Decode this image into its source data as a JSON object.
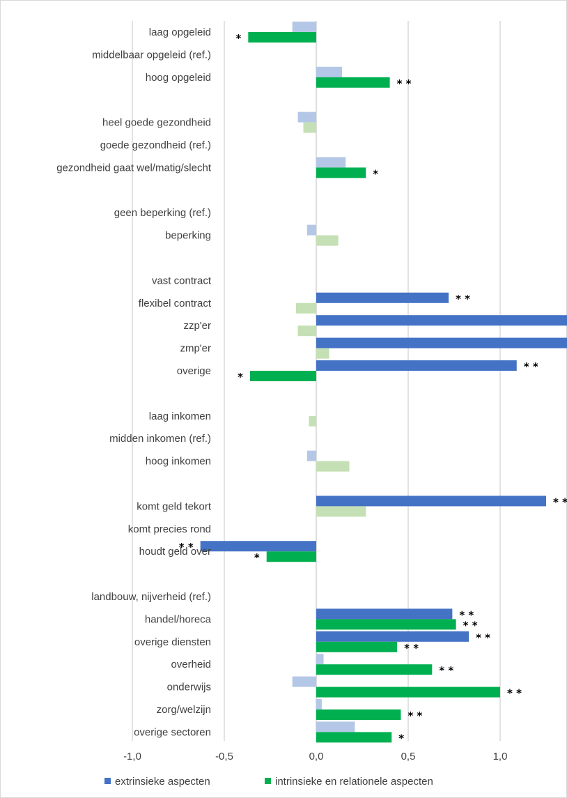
{
  "chart_data": {
    "type": "bar",
    "orientation": "horizontal",
    "xlim": [
      -1.0,
      2.5
    ],
    "xticks": [
      "-1,0",
      "-0,5",
      "0,0",
      "0,5",
      "1,0",
      "1,5",
      "2,0",
      "2,5"
    ],
    "grid": true,
    "legend_position": "bottom",
    "categories": [
      "laag opgeleid",
      "middelbaar opgeleid (ref.)",
      "hoog opgeleid",
      "",
      "heel goede gezondheid",
      "goede gezondheid (ref.)",
      "gezondheid gaat wel/matig/slecht",
      "",
      "geen beperking (ref.)",
      "beperking",
      "",
      "vast contract",
      "flexibel contract",
      "zzp'er",
      "zmp'er",
      "overige",
      "",
      "laag inkomen",
      "midden inkomen (ref.)",
      "hoog inkomen",
      "",
      "komt geld tekort",
      "komt precies rond",
      "houdt geld over",
      "",
      "landbouw, nijverheid (ref.)",
      "handel/horeca",
      "overige diensten",
      "overheid",
      "onderwijs",
      "zorg/welzijn",
      "overige sectoren"
    ],
    "series": [
      {
        "name": "extrinsieke aspecten",
        "color": "#4472c4",
        "faded_color": "#b4c7e7",
        "values": [
          -0.13,
          null,
          0.14,
          null,
          -0.1,
          null,
          0.16,
          null,
          null,
          -0.05,
          null,
          null,
          0.72,
          2.08,
          1.62,
          1.09,
          null,
          null,
          null,
          -0.05,
          null,
          1.25,
          null,
          -0.63,
          null,
          null,
          0.74,
          0.83,
          0.04,
          -0.13,
          0.03,
          0.21
        ],
        "significance": [
          "",
          "",
          "",
          "",
          "",
          "",
          "",
          "",
          "",
          "",
          "",
          "",
          "**",
          "**",
          "**",
          "**",
          "",
          "",
          "",
          "",
          "",
          "**",
          "",
          "**",
          "",
          "",
          "**",
          "**",
          "",
          "",
          "",
          ""
        ]
      },
      {
        "name": "intrinsieke en relationele aspecten",
        "color": "#00b050",
        "faded_color": "#c5e0b4",
        "values": [
          -0.37,
          null,
          0.4,
          null,
          -0.07,
          null,
          0.27,
          null,
          null,
          0.12,
          null,
          null,
          -0.11,
          -0.1,
          0.07,
          -0.36,
          null,
          -0.04,
          null,
          0.18,
          null,
          0.27,
          null,
          -0.27,
          null,
          null,
          0.76,
          0.44,
          0.63,
          1.0,
          0.46,
          0.41
        ],
        "significance": [
          "*",
          "",
          "**",
          "",
          "",
          "",
          "*",
          "",
          "",
          "",
          "",
          "",
          "",
          "",
          "",
          "*",
          "",
          "",
          "",
          "",
          "",
          "",
          "",
          "*",
          "",
          "",
          "**",
          "**",
          "**",
          "**",
          "**",
          "*"
        ]
      }
    ]
  }
}
